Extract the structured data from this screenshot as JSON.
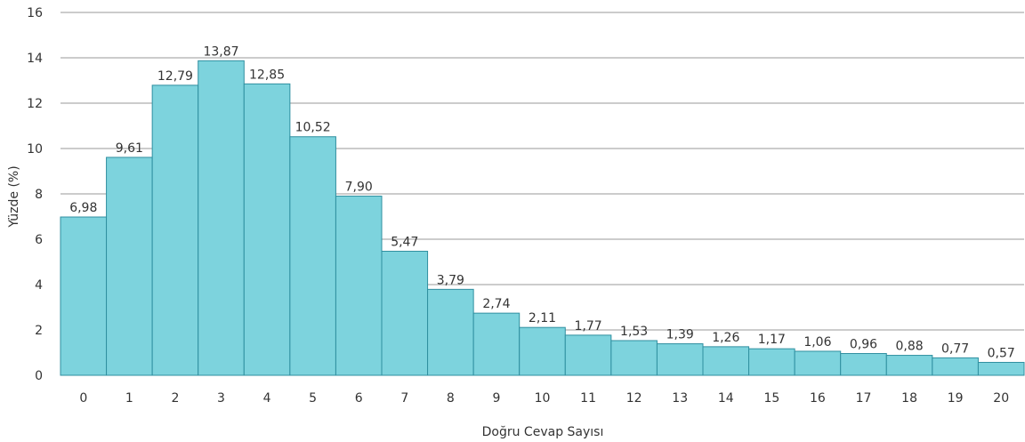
{
  "chart_data": {
    "type": "bar",
    "categories": [
      "0",
      "1",
      "2",
      "3",
      "4",
      "5",
      "6",
      "7",
      "8",
      "9",
      "10",
      "11",
      "12",
      "13",
      "14",
      "15",
      "16",
      "17",
      "18",
      "19",
      "20"
    ],
    "values": [
      6.98,
      9.61,
      12.79,
      13.87,
      12.85,
      10.52,
      7.9,
      5.47,
      3.79,
      2.74,
      2.11,
      1.77,
      1.53,
      1.39,
      1.26,
      1.17,
      1.06,
      0.96,
      0.88,
      0.77,
      0.57
    ],
    "value_labels": [
      "6,98",
      "9,61",
      "12,79",
      "13,87",
      "12,85",
      "10,52",
      "7,90",
      "5,47",
      "3,79",
      "2,74",
      "2,11",
      "1,77",
      "1,53",
      "1,39",
      "1,26",
      "1,17",
      "1,06",
      "0,96",
      "0,88",
      "0,77",
      "0,57"
    ],
    "xlabel": "Doğru Cevap Sayısı",
    "ylabel": "Yüzde (%)",
    "ylim": [
      0,
      16
    ],
    "yticks": [
      "0",
      "2",
      "4",
      "6",
      "8",
      "10",
      "12",
      "14",
      "16"
    ],
    "grid": true,
    "bar_color": "#7dd3dd",
    "bar_edge_color": "#2f8fa0"
  }
}
